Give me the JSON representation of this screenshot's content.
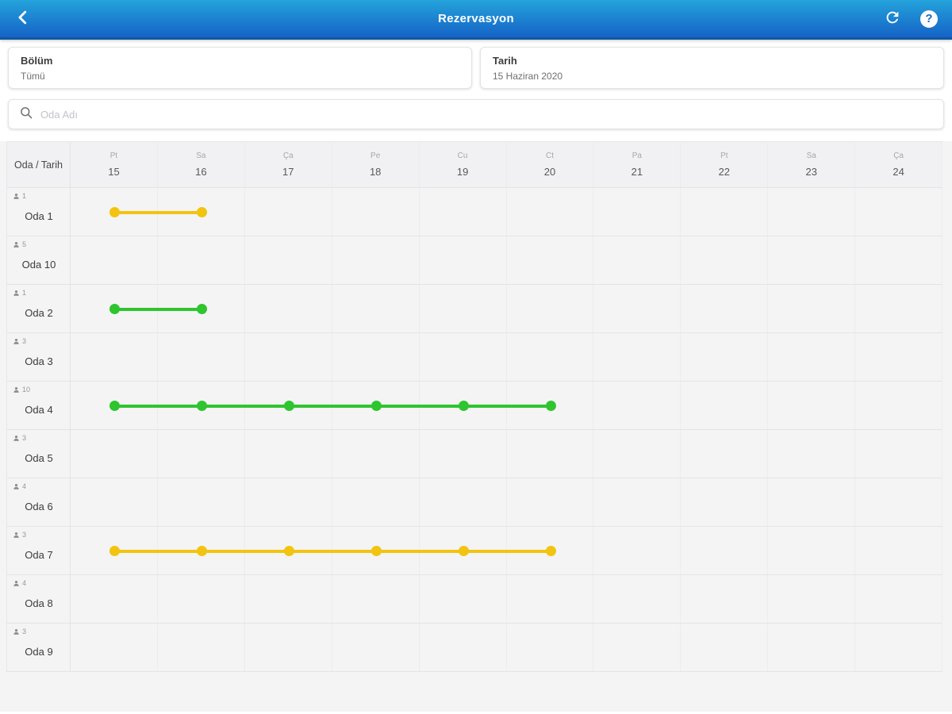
{
  "app_bar": {
    "title": "Rezervasyon",
    "help_glyph": "?"
  },
  "filters": {
    "bolum": {
      "label": "Bölüm",
      "value": "Tümü"
    },
    "tarih": {
      "label": "Tarih",
      "value": "15 Haziran 2020"
    }
  },
  "search": {
    "placeholder": "Oda Adı"
  },
  "schedule": {
    "corner_label": "Oda / Tarih",
    "days": [
      {
        "weekday": "Pt",
        "date": "15"
      },
      {
        "weekday": "Sa",
        "date": "16"
      },
      {
        "weekday": "Ça",
        "date": "17"
      },
      {
        "weekday": "Pe",
        "date": "18"
      },
      {
        "weekday": "Cu",
        "date": "19"
      },
      {
        "weekday": "Ct",
        "date": "20"
      },
      {
        "weekday": "Pa",
        "date": "21"
      },
      {
        "weekday": "Pt",
        "date": "22"
      },
      {
        "weekday": "Sa",
        "date": "23"
      },
      {
        "weekday": "Ça",
        "date": "24"
      }
    ],
    "status_colors": {
      "green": "#2EC52E",
      "yellow": "#F2C40F"
    },
    "rooms": [
      {
        "name": "Oda 1",
        "capacity": "1",
        "reservation": {
          "start": 0,
          "end": 1,
          "color": "yellow"
        }
      },
      {
        "name": "Oda 10",
        "capacity": "5",
        "reservation": null
      },
      {
        "name": "Oda 2",
        "capacity": "1",
        "reservation": {
          "start": 0,
          "end": 1,
          "color": "green"
        }
      },
      {
        "name": "Oda 3",
        "capacity": "3",
        "reservation": null
      },
      {
        "name": "Oda 4",
        "capacity": "10",
        "reservation": {
          "start": 0,
          "end": 5,
          "color": "green"
        }
      },
      {
        "name": "Oda 5",
        "capacity": "3",
        "reservation": null
      },
      {
        "name": "Oda 6",
        "capacity": "4",
        "reservation": null
      },
      {
        "name": "Oda 7",
        "capacity": "3",
        "reservation": {
          "start": 0,
          "end": 5,
          "color": "yellow"
        }
      },
      {
        "name": "Oda 8",
        "capacity": "4",
        "reservation": null
      },
      {
        "name": "Oda 9",
        "capacity": "3",
        "reservation": null
      }
    ]
  }
}
